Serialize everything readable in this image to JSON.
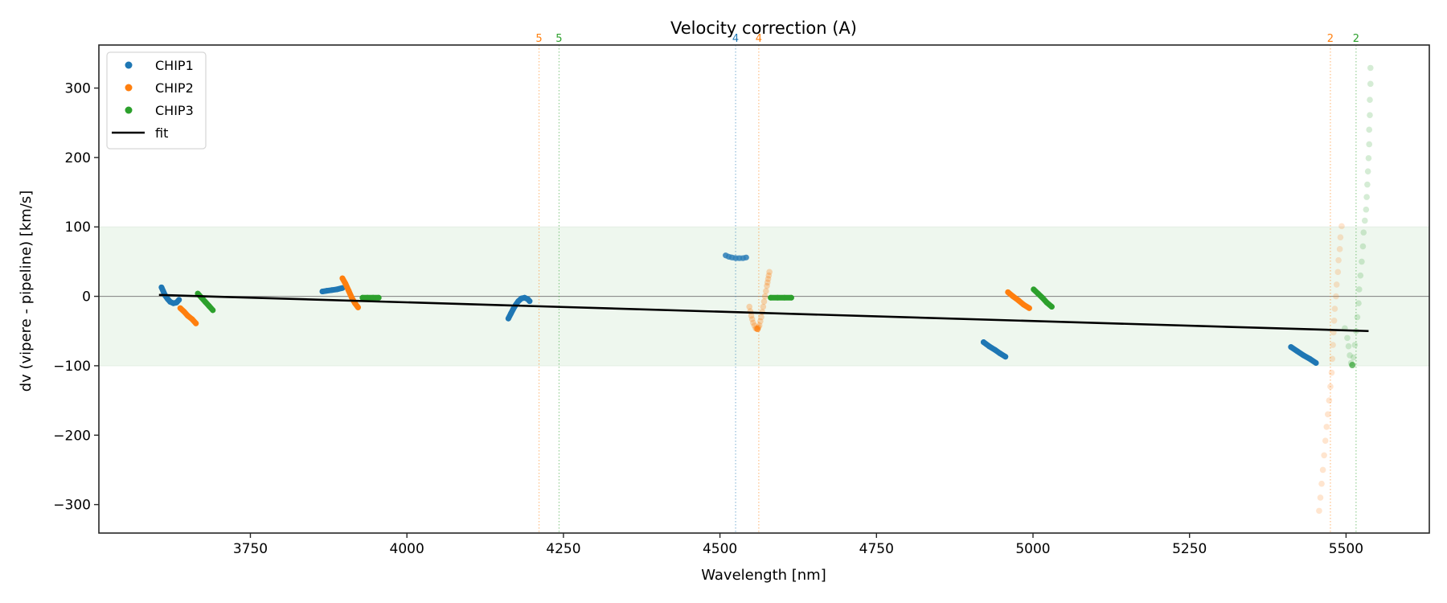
{
  "chart_data": {
    "type": "scatter",
    "title": "Velocity correction (A)",
    "xlabel": "Wavelength [nm]",
    "ylabel": "dv (vipere - pipeline) [km/s]",
    "xlim": [
      3508,
      5633
    ],
    "ylim": [
      -341,
      362
    ],
    "xticks": [
      3750,
      4000,
      4250,
      4500,
      4750,
      5000,
      5250,
      5500
    ],
    "xtick_labels": [
      "3750",
      "4000",
      "4250",
      "4500",
      "4750",
      "5000",
      "5250",
      "5500"
    ],
    "yticks": [
      -300,
      -200,
      -100,
      0,
      100,
      200,
      300
    ],
    "ytick_labels": [
      "−300",
      "−200",
      "−100",
      "0",
      "100",
      "200",
      "300"
    ],
    "grid": false,
    "legend_position": "top-left",
    "band": {
      "ymin": -100,
      "ymax": 100,
      "color": "#eef7ee"
    },
    "zero_line": {
      "y": 0,
      "color": "#808080"
    },
    "series": [
      {
        "name": "CHIP1",
        "color": "#1f77b4",
        "segments": [
          {
            "alpha": 1,
            "points": [
              [
                3608,
                13
              ],
              [
                3611,
                7
              ],
              [
                3614,
                1
              ],
              [
                3618,
                -4
              ],
              [
                3622,
                -8
              ],
              [
                3627,
                -10
              ],
              [
                3632,
                -9
              ],
              [
                3636,
                -5
              ]
            ]
          },
          {
            "alpha": 1,
            "points": [
              [
                3865,
                7
              ],
              [
                3872,
                8
              ],
              [
                3880,
                9
              ],
              [
                3888,
                10
              ],
              [
                3897,
                12
              ]
            ]
          },
          {
            "alpha": 1,
            "points": [
              [
                4162,
                -32
              ],
              [
                4166,
                -25
              ],
              [
                4170,
                -18
              ],
              [
                4174,
                -12
              ],
              [
                4178,
                -7
              ],
              [
                4183,
                -3
              ],
              [
                4188,
                -2
              ],
              [
                4193,
                -4
              ],
              [
                4196,
                -7
              ]
            ]
          },
          {
            "alpha": 0.55,
            "points": [
              [
                4509,
                59
              ],
              [
                4514,
                57
              ],
              [
                4519,
                56
              ],
              [
                4525,
                55
              ],
              [
                4531,
                55
              ],
              [
                4537,
                55
              ],
              [
                4542,
                56
              ]
            ]
          },
          {
            "alpha": 1,
            "points": [
              [
                4921,
                -66
              ],
              [
                4930,
                -72
              ],
              [
                4939,
                -77
              ],
              [
                4947,
                -82
              ],
              [
                4956,
                -87
              ]
            ]
          },
          {
            "alpha": 1,
            "points": [
              [
                5412,
                -73
              ],
              [
                5422,
                -79
              ],
              [
                5432,
                -85
              ],
              [
                5442,
                -90
              ],
              [
                5452,
                -96
              ]
            ]
          }
        ]
      },
      {
        "name": "CHIP2",
        "color": "#ff7f0e",
        "segments": [
          {
            "alpha": 1,
            "points": [
              [
                3638,
                -17
              ],
              [
                3644,
                -22
              ],
              [
                3650,
                -28
              ],
              [
                3657,
                -33
              ],
              [
                3663,
                -39
              ]
            ]
          },
          {
            "alpha": 1,
            "points": [
              [
                3897,
                26
              ],
              [
                3902,
                18
              ],
              [
                3907,
                8
              ],
              [
                3912,
                -2
              ],
              [
                3917,
                -10
              ],
              [
                3922,
                -16
              ]
            ]
          },
          {
            "alpha": 0.3,
            "points": [
              [
                4547,
                -15
              ],
              [
                4550,
                -28
              ],
              [
                4553,
                -38
              ],
              [
                4557,
                -46
              ],
              [
                4560,
                -47
              ],
              [
                4563,
                -42
              ],
              [
                4566,
                -30
              ],
              [
                4569,
                -15
              ],
              [
                4572,
                0
              ],
              [
                4575,
                15
              ],
              [
                4577,
                25
              ],
              [
                4579,
                35
              ]
            ]
          },
          {
            "alpha": 1,
            "points": [
              [
                4960,
                6
              ],
              [
                4968,
                0
              ],
              [
                4977,
                -6
              ],
              [
                4985,
                -12
              ],
              [
                4994,
                -17
              ]
            ]
          },
          {
            "alpha": 0.2,
            "points": [
              [
                5457,
                -309
              ],
              [
                5459,
                -290
              ],
              [
                5461,
                -270
              ],
              [
                5463,
                -250
              ],
              [
                5465,
                -229
              ],
              [
                5467,
                -208
              ],
              [
                5469,
                -188
              ],
              [
                5471,
                -170
              ],
              [
                5473,
                -150
              ],
              [
                5475,
                -130
              ],
              [
                5477,
                -110
              ],
              [
                5478,
                -90
              ],
              [
                5479,
                -70
              ],
              [
                5480,
                -52
              ],
              [
                5481,
                -35
              ],
              [
                5482,
                -18
              ],
              [
                5484,
                0
              ],
              [
                5485,
                17
              ],
              [
                5487,
                35
              ],
              [
                5488,
                52
              ],
              [
                5490,
                68
              ],
              [
                5491,
                85
              ],
              [
                5493,
                101
              ]
            ]
          }
        ]
      },
      {
        "name": "CHIP3",
        "color": "#2ca02c",
        "segments": [
          {
            "alpha": 1,
            "points": [
              [
                3666,
                4
              ],
              [
                3672,
                -2
              ],
              [
                3678,
                -8
              ],
              [
                3684,
                -14
              ],
              [
                3690,
                -20
              ]
            ]
          },
          {
            "alpha": 1,
            "points": [
              [
                3929,
                -2
              ],
              [
                3937,
                -2
              ],
              [
                3946,
                -2
              ],
              [
                3955,
                -2
              ]
            ]
          },
          {
            "alpha": 1,
            "points": [
              [
                4581,
                -2
              ],
              [
                4592,
                -2
              ],
              [
                4603,
                -2
              ],
              [
                4614,
                -2
              ]
            ]
          },
          {
            "alpha": 1,
            "points": [
              [
                5001,
                10
              ],
              [
                5008,
                4
              ],
              [
                5015,
                -2
              ],
              [
                5022,
                -9
              ],
              [
                5030,
                -15
              ]
            ]
          },
          {
            "alpha": 0.2,
            "points": [
              [
                5498,
                -46
              ],
              [
                5502,
                -60
              ],
              [
                5504,
                -72
              ],
              [
                5506,
                -85
              ],
              [
                5508,
                -96
              ],
              [
                5510,
                -99
              ],
              [
                5512,
                -88
              ],
              [
                5514,
                -70
              ],
              [
                5516,
                -50
              ],
              [
                5518,
                -30
              ],
              [
                5520,
                -10
              ],
              [
                5521,
                10
              ],
              [
                5523,
                30
              ],
              [
                5525,
                50
              ],
              [
                5527,
                72
              ],
              [
                5528,
                92
              ],
              [
                5530,
                109
              ],
              [
                5532,
                125
              ],
              [
                5533,
                143
              ],
              [
                5534,
                161
              ],
              [
                5535,
                180
              ],
              [
                5536,
                199
              ],
              [
                5537,
                219
              ],
              [
                5537,
                240
              ],
              [
                5538,
                261
              ],
              [
                5538,
                283
              ],
              [
                5539,
                306
              ],
              [
                5539,
                329
              ]
            ]
          }
        ]
      }
    ],
    "fit": {
      "name": "fit",
      "color": "#000000",
      "points": [
        [
          3604,
          2
        ],
        [
          5536,
          -50
        ]
      ]
    },
    "vlines": [
      {
        "x": 4211,
        "label": "5",
        "color": "#ff7f0e"
      },
      {
        "x": 4243,
        "label": "5",
        "color": "#2ca02c"
      },
      {
        "x": 4525,
        "label": "4",
        "color": "#1f77b4"
      },
      {
        "x": 4562,
        "label": "4",
        "color": "#ff7f0e"
      },
      {
        "x": 5475,
        "label": "2",
        "color": "#ff7f0e"
      },
      {
        "x": 5516,
        "label": "2",
        "color": "#2ca02c"
      }
    ],
    "legend": [
      {
        "label": "CHIP1",
        "kind": "marker",
        "color": "#1f77b4"
      },
      {
        "label": "CHIP2",
        "kind": "marker",
        "color": "#ff7f0e"
      },
      {
        "label": "CHIP3",
        "kind": "marker",
        "color": "#2ca02c"
      },
      {
        "label": "fit",
        "kind": "line",
        "color": "#000000"
      }
    ]
  }
}
